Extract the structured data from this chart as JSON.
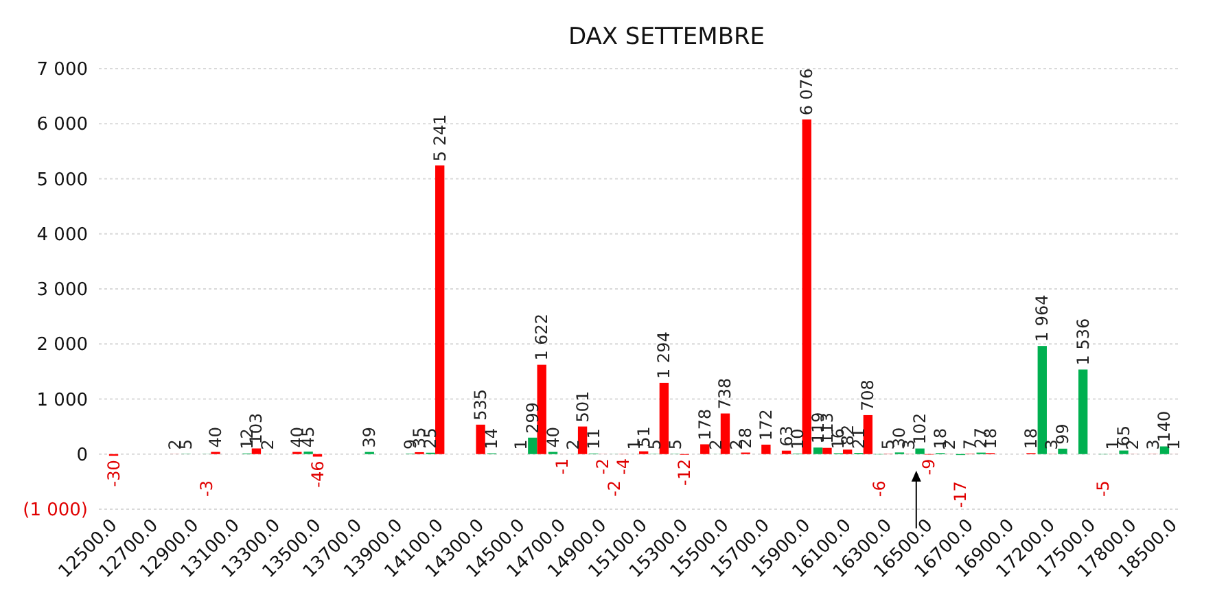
{
  "chart_data": {
    "type": "bar",
    "title": "DAX SETTEMBRE",
    "categories": [
      "12500.0",
      null,
      "12700.0",
      null,
      "12900.0",
      null,
      "13100.0",
      null,
      "13300.0",
      null,
      "13500.0",
      null,
      "13700.0",
      null,
      "13900.0",
      null,
      "14100.0",
      null,
      "14300.0",
      null,
      "14500.0",
      null,
      "14700.0",
      null,
      "14900.0",
      null,
      "15100.0",
      null,
      "15300.0",
      null,
      "15500.0",
      null,
      "15700.0",
      null,
      "15900.0",
      null,
      "16100.0",
      null,
      "16300.0",
      null,
      "16500.0",
      null,
      "16700.0",
      null,
      "16900.0",
      null,
      "17200.0",
      null,
      "17500.0",
      null,
      "17800.0",
      null,
      "18500.0"
    ],
    "series": [
      {
        "color": "#00b050",
        "values": [
          null,
          null,
          null,
          null,
          5,
          -3,
          null,
          12,
          2,
          null,
          45,
          null,
          null,
          39,
          null,
          9,
          25,
          null,
          null,
          14,
          null,
          299,
          40,
          2,
          11,
          -2,
          1,
          5,
          5,
          null,
          2,
          2,
          null,
          null,
          10,
          119,
          16,
          21,
          -6,
          30,
          102,
          18,
          -17,
          27,
          null,
          null,
          1964,
          99,
          1536,
          -5,
          65,
          null,
          140
        ],
        "value_labels": [
          null,
          null,
          null,
          null,
          "5",
          "-3",
          null,
          "12",
          "2",
          null,
          "45",
          null,
          null,
          "39",
          null,
          "9",
          "25",
          null,
          null,
          "14",
          null,
          "299",
          "40",
          "2",
          "11",
          "-2",
          "1",
          "5",
          "5",
          null,
          "2",
          "2",
          null,
          null,
          "10",
          "119",
          "16",
          "21",
          "-6",
          "30",
          "102",
          "18",
          "-17",
          "27",
          null,
          null,
          "1 964",
          "99",
          "1 536",
          "-5",
          "65",
          null,
          "140"
        ]
      },
      {
        "color": "#ff0000",
        "values": [
          -30,
          null,
          null,
          2,
          null,
          40,
          null,
          103,
          null,
          40,
          -46,
          null,
          null,
          null,
          null,
          35,
          5241,
          null,
          535,
          null,
          1,
          1622,
          -1,
          501,
          -2,
          -4,
          51,
          1294,
          -12,
          178,
          738,
          28,
          172,
          63,
          6076,
          113,
          82,
          708,
          5,
          3,
          -9,
          2,
          7,
          18,
          null,
          18,
          3,
          null,
          null,
          1,
          2,
          3,
          1
        ],
        "value_labels": [
          "-30",
          null,
          null,
          "2",
          null,
          "40",
          null,
          "103",
          null,
          "40",
          "-46",
          null,
          null,
          null,
          null,
          "35",
          "5 241",
          null,
          "535",
          null,
          "1",
          "1 622",
          "-1",
          "501",
          "-2",
          "-4",
          "51",
          "1 294",
          "-12",
          "178",
          "738",
          "28",
          "172",
          "63",
          "6 076",
          "113",
          "82",
          "708",
          "5",
          "3",
          "-9",
          "2",
          "7",
          "18",
          null,
          "18",
          "3",
          null,
          null,
          "1",
          "2",
          "3",
          "1"
        ]
      }
    ],
    "ylim": [
      -1000,
      7000
    ],
    "yticks": [
      {
        "value": -1000,
        "label": "(1 000)"
      },
      0,
      {
        "value": 1000,
        "label": "1 000"
      },
      {
        "value": 2000,
        "label": "2 000"
      },
      {
        "value": 3000,
        "label": "3 000"
      },
      {
        "value": 4000,
        "label": "4 000"
      },
      {
        "value": 5000,
        "label": "5 000"
      },
      {
        "value": 6000,
        "label": "6 000"
      },
      {
        "value": 7000,
        "label": "7 000"
      }
    ],
    "grid": "y"
  }
}
